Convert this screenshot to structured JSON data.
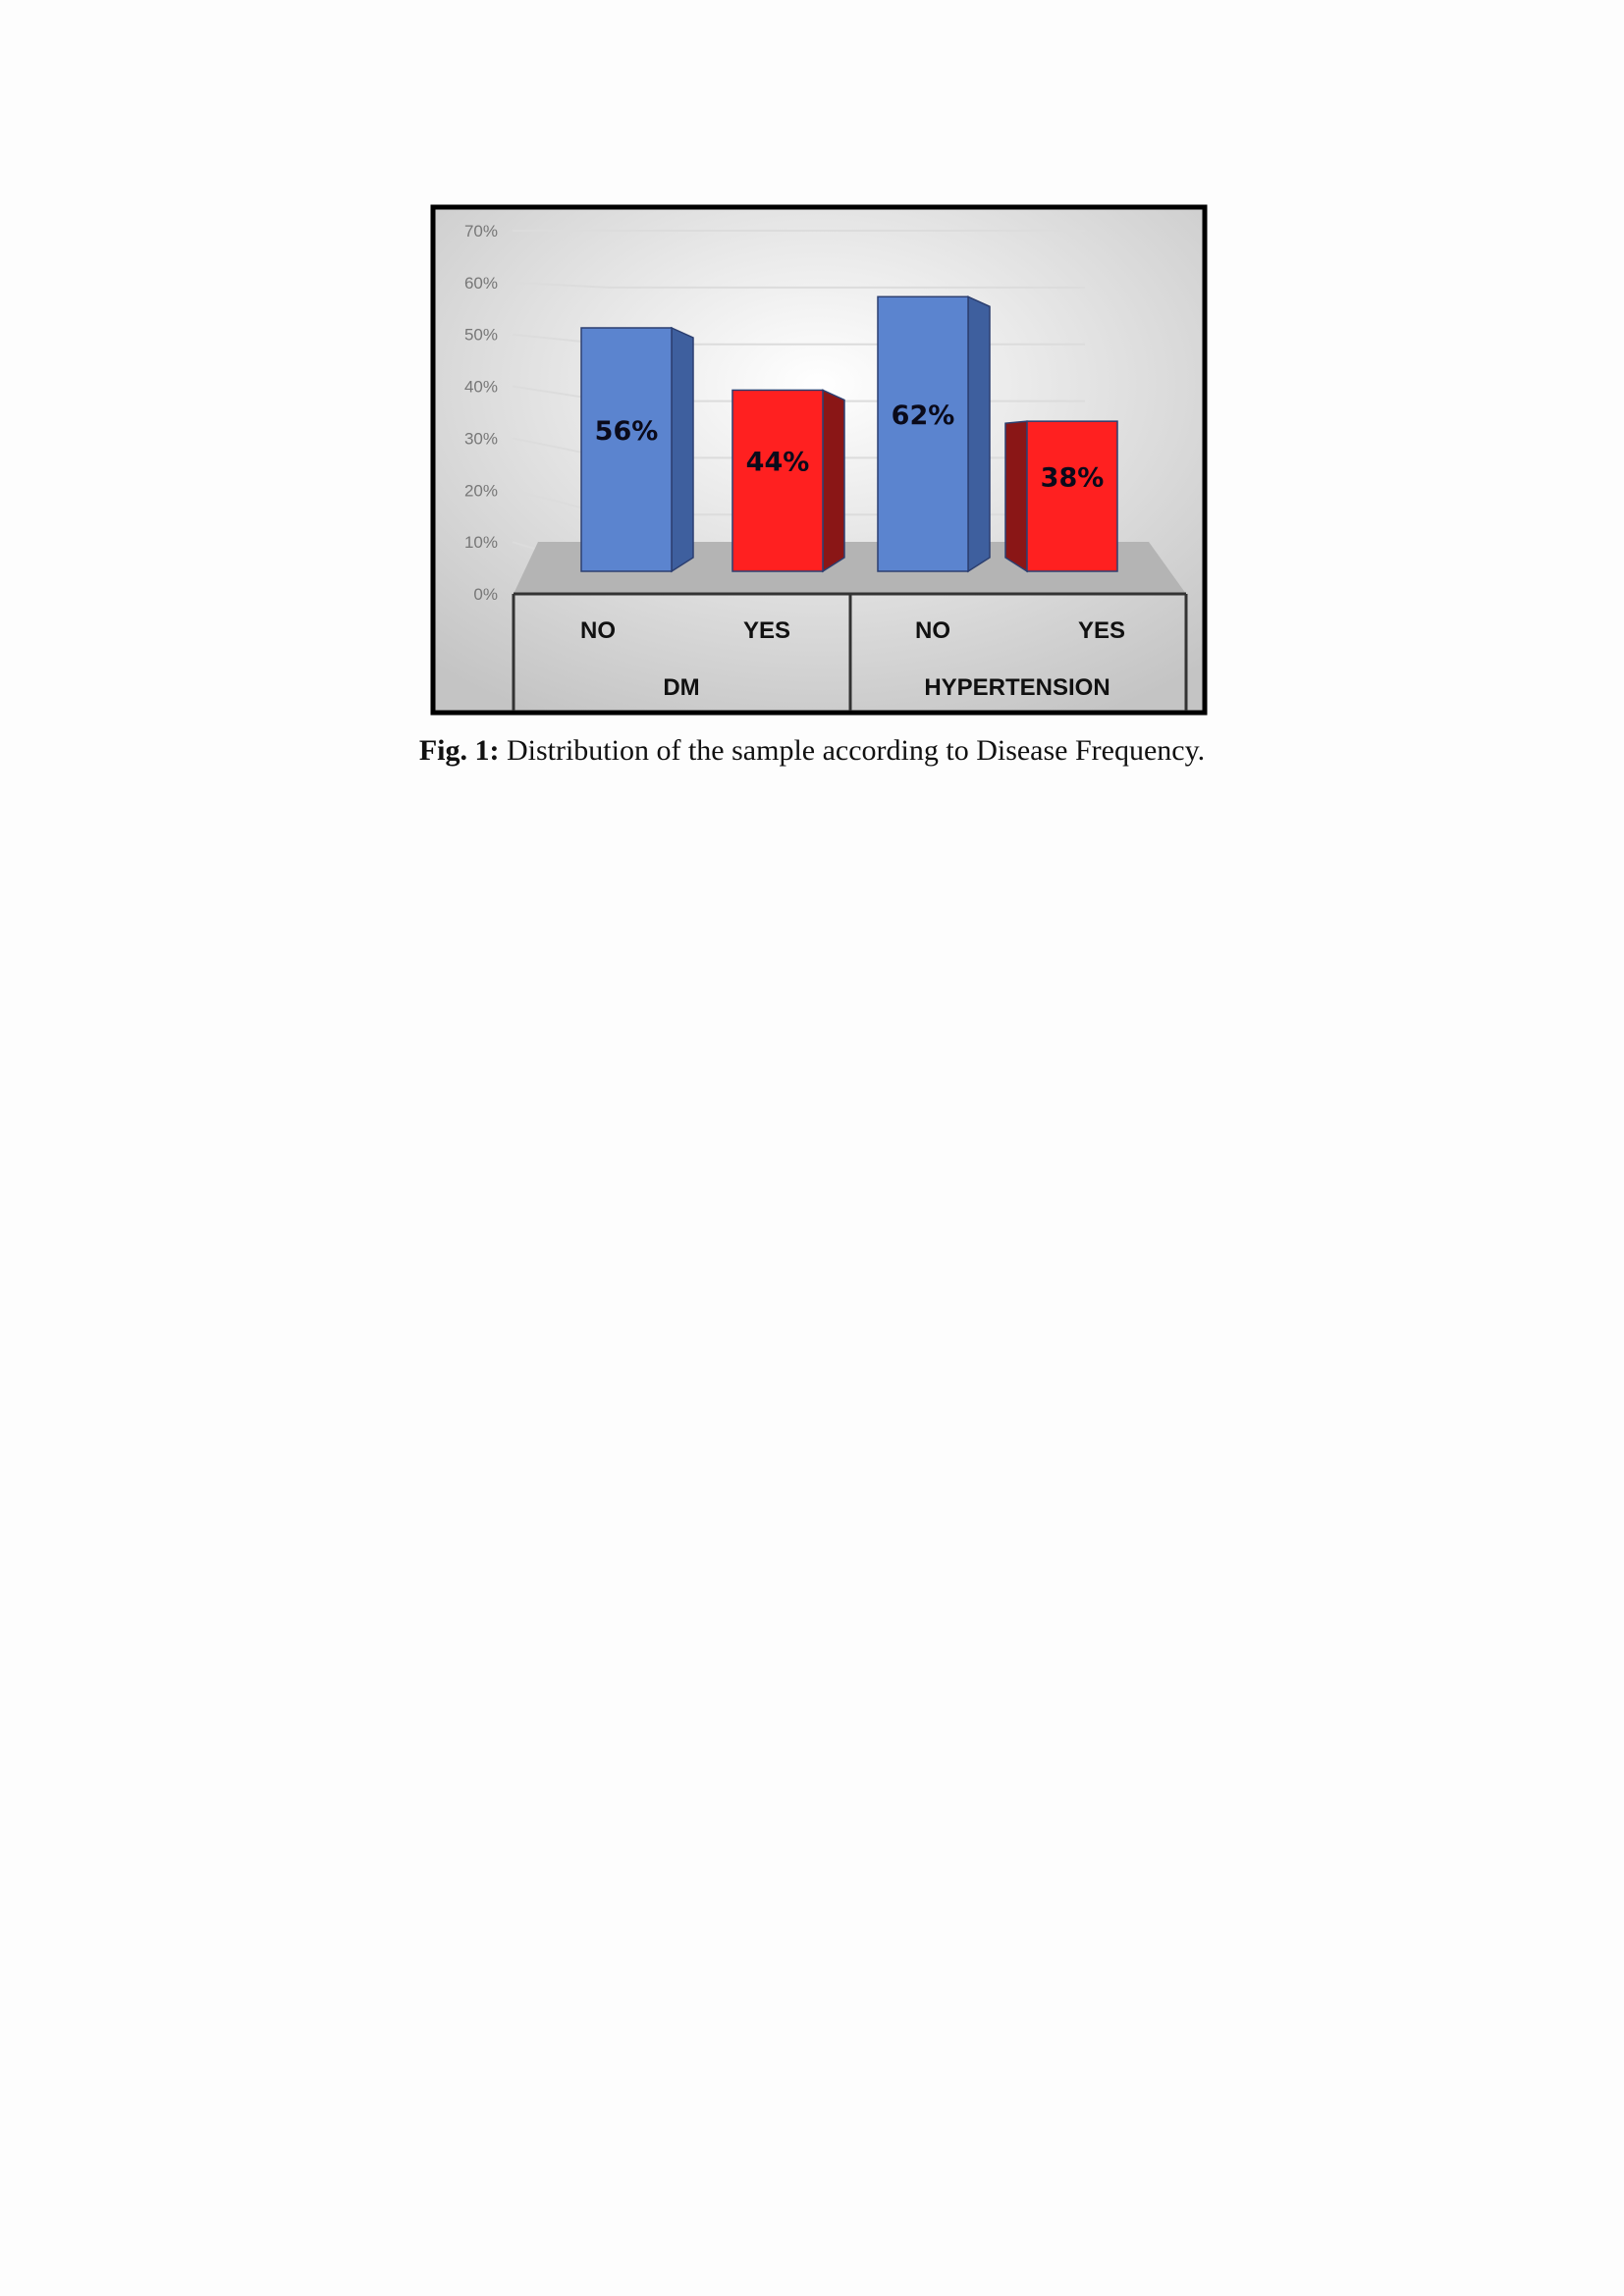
{
  "chart_data": {
    "type": "bar",
    "style": "3d-clustered-column",
    "groups": [
      {
        "name": "DM",
        "categories": [
          "NO",
          "YES"
        ],
        "values": [
          56,
          44
        ]
      },
      {
        "name": "HYPERTENSION",
        "categories": [
          "NO",
          "YES"
        ],
        "values": [
          62,
          38
        ]
      }
    ],
    "data_labels": [
      "56%",
      "44%",
      "62%",
      "38%"
    ],
    "y_ticks": [
      "0%",
      "10%",
      "20%",
      "30%",
      "40%",
      "50%",
      "60%",
      "70%"
    ],
    "ylim": [
      0,
      70
    ],
    "grid": true,
    "colors": {
      "NO": "#5b84cf",
      "YES": "#ff2020"
    }
  },
  "caption": {
    "label": "Fig. 1:",
    "text": " Distribution of the sample according to Disease Frequency."
  }
}
